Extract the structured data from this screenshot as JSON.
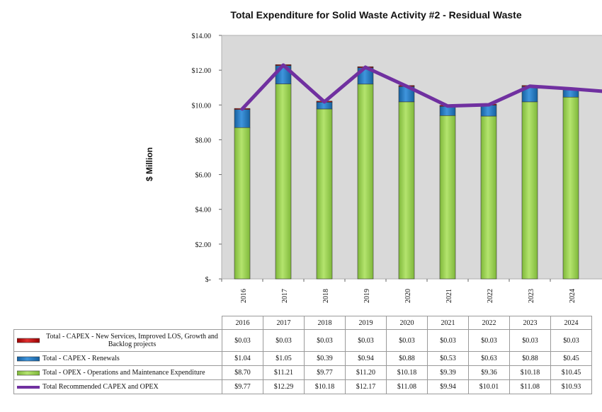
{
  "chart_data": {
    "type": "bar",
    "title": "Total Expenditure for Solid Waste Activity #2 - Residual Waste",
    "xlabel": "",
    "ylabel": "$ Million",
    "ylim": [
      0,
      14
    ],
    "yticks": [
      "$14.00",
      "$12.00",
      "$10.00",
      "$8.00",
      "$6.00",
      "$4.00",
      "$2.00",
      "$-"
    ],
    "ytick_values": [
      14,
      12,
      10,
      8,
      6,
      4,
      2,
      0
    ],
    "categories": [
      "2016",
      "2017",
      "2018",
      "2019",
      "2020",
      "2021",
      "2022",
      "2023",
      "2024"
    ],
    "stacked": true,
    "grid": false,
    "series": [
      {
        "name": "Total - OPEX - Operations and Maintenance Expenditure",
        "type": "bar",
        "color": "#92d050",
        "values": [
          8.7,
          11.21,
          9.77,
          11.2,
          10.18,
          9.39,
          9.36,
          10.18,
          10.45
        ],
        "labels": [
          "$8.70",
          "$11.21",
          "$9.77",
          "$11.20",
          "$10.18",
          "$9.39",
          "$9.36",
          "$10.18",
          "$10.45"
        ]
      },
      {
        "name": "Total - CAPEX - Renewals",
        "type": "bar",
        "color": "#1f74c6",
        "values": [
          1.04,
          1.05,
          0.39,
          0.94,
          0.88,
          0.53,
          0.63,
          0.88,
          0.45
        ],
        "labels": [
          "$1.04",
          "$1.05",
          "$0.39",
          "$0.94",
          "$0.88",
          "$0.53",
          "$0.63",
          "$0.88",
          "$0.45"
        ]
      },
      {
        "name": "Total - CAPEX - New Services, Improved LOS, Growth and Backlog projects",
        "type": "bar",
        "color": "#c00000",
        "values": [
          0.03,
          0.03,
          0.03,
          0.03,
          0.03,
          0.03,
          0.03,
          0.03,
          0.03
        ],
        "labels": [
          "$0.03",
          "$0.03",
          "$0.03",
          "$0.03",
          "$0.03",
          "$0.03",
          "$0.03",
          "$0.03",
          "$0.03"
        ]
      },
      {
        "name": "Total Recommended CAPEX and OPEX",
        "type": "line",
        "color": "#7030a0",
        "values": [
          9.77,
          12.29,
          10.18,
          12.17,
          11.08,
          9.94,
          10.01,
          11.08,
          10.93
        ],
        "labels": [
          "$9.77",
          "$12.29",
          "$10.18",
          "$12.17",
          "$11.08",
          "$9.94",
          "$10.01",
          "$11.08",
          "$10.93"
        ]
      }
    ]
  }
}
